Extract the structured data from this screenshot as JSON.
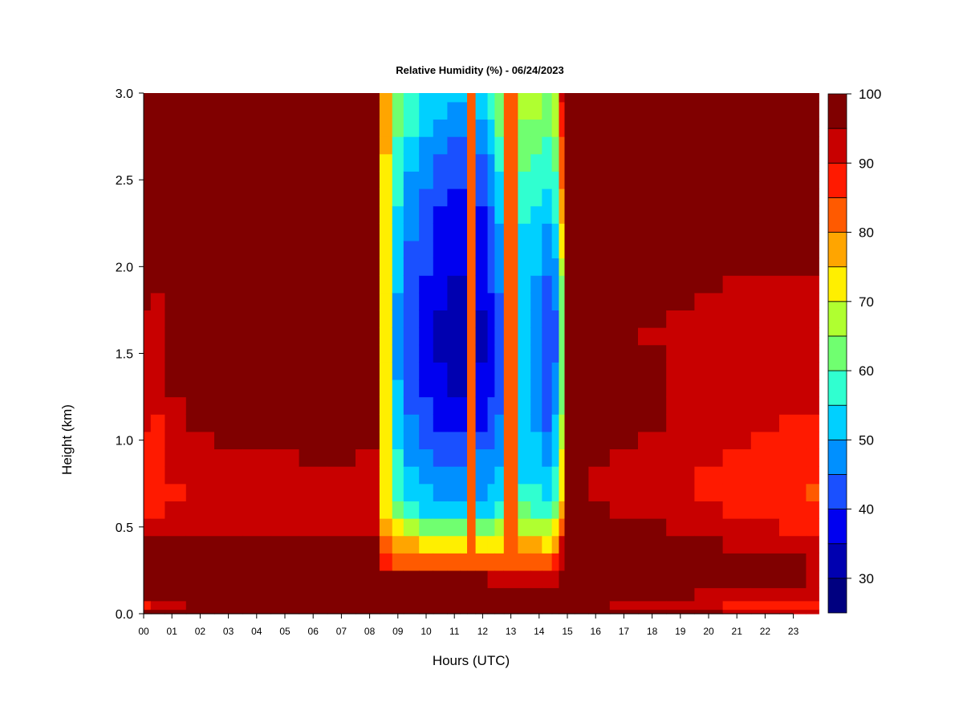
{
  "chart_data": {
    "type": "heatmap",
    "title": "Relative Humidity (%) - 06/24/2023",
    "xlabel": "Hours (UTC)",
    "ylabel": "Height (km)",
    "xlim": [
      0,
      23.9
    ],
    "ylim": [
      0,
      3
    ],
    "x_ticks": [
      "00",
      "01",
      "02",
      "03",
      "04",
      "05",
      "06",
      "07",
      "08",
      "09",
      "10",
      "11",
      "12",
      "13",
      "14",
      "15",
      "16",
      "17",
      "18",
      "19",
      "20",
      "21",
      "22",
      "23"
    ],
    "y_ticks": [
      "0.0",
      "0.5",
      "1.0",
      "1.5",
      "2.0",
      "2.5",
      "3.0"
    ],
    "colorbar": {
      "levels": [
        25,
        30,
        35,
        40,
        45,
        50,
        55,
        60,
        65,
        70,
        75,
        80,
        85,
        90,
        95,
        100
      ],
      "tick_labels": [
        "30",
        "40",
        "50",
        "60",
        "70",
        "80",
        "90",
        "100"
      ],
      "colors": [
        "#000080",
        "#0000b0",
        "#0000f0",
        "#1a50ff",
        "#0090ff",
        "#00d0ff",
        "#30ffd0",
        "#70ff70",
        "#b0ff30",
        "#ffef00",
        "#ffa500",
        "#ff5a00",
        "#ff1a00",
        "#c80000",
        "#800000"
      ]
    },
    "x_hours": [
      0,
      0.5,
      1,
      2,
      3,
      4,
      5,
      6,
      7,
      8,
      8.7,
      8.9,
      9.5,
      10,
      10.5,
      11,
      11.4,
      11.5,
      12,
      12.35,
      12.5,
      13,
      13.5,
      13.9,
      14.3,
      14.6,
      14.8,
      15,
      15.5,
      16,
      17,
      18,
      19,
      20,
      21,
      22,
      23,
      23.9
    ],
    "y_km": [
      0,
      0.05,
      0.1,
      0.2,
      0.3,
      0.4,
      0.5,
      0.6,
      0.7,
      0.8,
      0.9,
      1.0,
      1.1,
      1.2,
      1.3,
      1.4,
      1.5,
      1.6,
      1.7,
      1.8,
      1.9,
      2.0,
      2.1,
      2.2,
      2.3,
      2.4,
      2.5,
      2.6,
      2.7,
      2.8,
      2.9,
      3.0
    ],
    "rh_profiles": [
      [
        99,
        89,
        96,
        98,
        98,
        97,
        90,
        88,
        86,
        87,
        88,
        89,
        90,
        91,
        92,
        92,
        93,
        93,
        94,
        95,
        96,
        97,
        98,
        98,
        98,
        98,
        98,
        98,
        98,
        98,
        98,
        98
      ],
      [
        99,
        92,
        97,
        98,
        98,
        98,
        91,
        88,
        85,
        86,
        87,
        88,
        89,
        90,
        91,
        91,
        92,
        93,
        94,
        94,
        95,
        96,
        98,
        98,
        98,
        98,
        98,
        98,
        98,
        98,
        98,
        98
      ],
      [
        99,
        94,
        98,
        99,
        99,
        98,
        92,
        90,
        89,
        90,
        91,
        92,
        93,
        94,
        95,
        96,
        96,
        96,
        96,
        96,
        97,
        98,
        99,
        99,
        99,
        99,
        99,
        99,
        99,
        99,
        99,
        99
      ],
      [
        99,
        96,
        99,
        99,
        99,
        99,
        93,
        91,
        90,
        92,
        93,
        94,
        95,
        96,
        97,
        97,
        96,
        96,
        97,
        97,
        98,
        99,
        99,
        99,
        99,
        99,
        99,
        99,
        99,
        99,
        99,
        99
      ],
      [
        99,
        97,
        99,
        99,
        99,
        99,
        93,
        92,
        91,
        93,
        94,
        95,
        96,
        97,
        97,
        96,
        96,
        97,
        96,
        97,
        98,
        99,
        99,
        99,
        99,
        99,
        99,
        99,
        99,
        99,
        99,
        99
      ],
      [
        99,
        97,
        99,
        99,
        99,
        99,
        94,
        92,
        91,
        93,
        94,
        95,
        96,
        97,
        97,
        97,
        96,
        96,
        97,
        97,
        98,
        99,
        99,
        99,
        99,
        99,
        99,
        99,
        99,
        99,
        99,
        99
      ],
      [
        99,
        97,
        99,
        99,
        99,
        99,
        94,
        92,
        91,
        93,
        94,
        95,
        96,
        97,
        97,
        97,
        96,
        96,
        97,
        97,
        98,
        99,
        99,
        99,
        99,
        99,
        99,
        99,
        99,
        99,
        99,
        99
      ],
      [
        99,
        98,
        99,
        99,
        99,
        99,
        94,
        93,
        92,
        93,
        95,
        96,
        96,
        97,
        97,
        97,
        97,
        97,
        97,
        98,
        98,
        99,
        99,
        99,
        99,
        99,
        99,
        99,
        99,
        99,
        99,
        99
      ],
      [
        99,
        98,
        99,
        99,
        99,
        99,
        94,
        93,
        92,
        93,
        95,
        96,
        96,
        97,
        97,
        97,
        97,
        97,
        97,
        98,
        98,
        99,
        99,
        99,
        99,
        99,
        99,
        99,
        99,
        99,
        99,
        99
      ],
      [
        99,
        98,
        99,
        99,
        99,
        99,
        93,
        92,
        91,
        92,
        94,
        95,
        96,
        97,
        97,
        97,
        96,
        96,
        96,
        97,
        98,
        99,
        99,
        99,
        99,
        99,
        99,
        99,
        99,
        99,
        99,
        99
      ],
      [
        99,
        98,
        99,
        97,
        85,
        80,
        75,
        74,
        73,
        73,
        73,
        73,
        73,
        72,
        72,
        72,
        72,
        72,
        72,
        72,
        72,
        72,
        73,
        73,
        73,
        73,
        74,
        74,
        75,
        75,
        76,
        77
      ],
      [
        99,
        98,
        99,
        96,
        82,
        76,
        70,
        62,
        58,
        57,
        55,
        53,
        52,
        51,
        50,
        49,
        49,
        48,
        48,
        49,
        50,
        52,
        53,
        53,
        54,
        55,
        56,
        57,
        58,
        60,
        62,
        63
      ],
      [
        99,
        98,
        99,
        96,
        81,
        75,
        66,
        55,
        51,
        50,
        48,
        46,
        45,
        44,
        43,
        42,
        41,
        41,
        41,
        42,
        43,
        44,
        44,
        45,
        46,
        47,
        49,
        51,
        53,
        55,
        57,
        58
      ],
      [
        99,
        98,
        99,
        96,
        80,
        74,
        64,
        53,
        50,
        48,
        46,
        44,
        42,
        40,
        39,
        38,
        37,
        37,
        37,
        38,
        39,
        40,
        40,
        40,
        41,
        43,
        45,
        47,
        49,
        51,
        53,
        54
      ],
      [
        99,
        98,
        99,
        96,
        80,
        73,
        63,
        52,
        49,
        47,
        44,
        42,
        39,
        37,
        36,
        35,
        34,
        34,
        34,
        35,
        36,
        37,
        37,
        37,
        38,
        40,
        42,
        44,
        46,
        48,
        50,
        51
      ],
      [
        99,
        98,
        99,
        96,
        80,
        73,
        63,
        52,
        49,
        47,
        44,
        41,
        38,
        35,
        34,
        33,
        32,
        32,
        32,
        33,
        34,
        35,
        36,
        36,
        37,
        38,
        40,
        42,
        44,
        46,
        48,
        50
      ],
      [
        99,
        98,
        99,
        95,
        80,
        72,
        63,
        52,
        49,
        47,
        44,
        41,
        38,
        35,
        34,
        33,
        32,
        32,
        32,
        33,
        34,
        35,
        36,
        36,
        37,
        38,
        40,
        42,
        44,
        46,
        48,
        50
      ],
      [
        99,
        98,
        99,
        95,
        84,
        82,
        80,
        80,
        80,
        80,
        80,
        80,
        80,
        80,
        80,
        80,
        80,
        80,
        80,
        80,
        80,
        80,
        80,
        80,
        80,
        80,
        80,
        80,
        80,
        80,
        80,
        80
      ],
      [
        99,
        98,
        99,
        95,
        80,
        73,
        63,
        52,
        49,
        47,
        45,
        42,
        39,
        37,
        36,
        35,
        34,
        34,
        34,
        35,
        36,
        37,
        38,
        38,
        39,
        40,
        42,
        44,
        46,
        48,
        50,
        51
      ],
      [
        99,
        98,
        99,
        94,
        80,
        73,
        64,
        53,
        50,
        48,
        46,
        44,
        42,
        40,
        39,
        38,
        38,
        38,
        38,
        39,
        40,
        41,
        42,
        43,
        44,
        45,
        47,
        49,
        51,
        53,
        55,
        56
      ],
      [
        99,
        98,
        99,
        94,
        81,
        74,
        66,
        56,
        53,
        51,
        49,
        47,
        45,
        44,
        43,
        43,
        43,
        43,
        43,
        44,
        45,
        46,
        47,
        48,
        50,
        52,
        54,
        56,
        58,
        60,
        62,
        63
      ],
      [
        99,
        98,
        99,
        94,
        84,
        82,
        80,
        80,
        80,
        80,
        80,
        80,
        80,
        80,
        80,
        80,
        80,
        80,
        80,
        80,
        80,
        80,
        80,
        80,
        80,
        80,
        80,
        80,
        80,
        80,
        80,
        80
      ],
      [
        99,
        98,
        99,
        94,
        82,
        76,
        68,
        60,
        56,
        54,
        52,
        51,
        50,
        50,
        50,
        50,
        50,
        50,
        50,
        50,
        51,
        52,
        53,
        54,
        55,
        56,
        58,
        60,
        62,
        64,
        66,
        67
      ],
      [
        99,
        98,
        99,
        94,
        81,
        75,
        67,
        58,
        55,
        53,
        51,
        50,
        49,
        48,
        48,
        48,
        47,
        47,
        47,
        48,
        49,
        50,
        51,
        52,
        53,
        55,
        57,
        59,
        61,
        63,
        65,
        66
      ],
      [
        99,
        98,
        99,
        94,
        81,
        74,
        66,
        55,
        52,
        50,
        48,
        46,
        44,
        43,
        42,
        41,
        41,
        41,
        41,
        42,
        43,
        45,
        47,
        49,
        51,
        53,
        55,
        57,
        59,
        61,
        63,
        64
      ],
      [
        99,
        98,
        99,
        94,
        86,
        78,
        70,
        62,
        58,
        56,
        54,
        52,
        50,
        48,
        46,
        45,
        44,
        44,
        44,
        45,
        47,
        49,
        51,
        53,
        55,
        57,
        59,
        61,
        63,
        65,
        67,
        68
      ],
      [
        99,
        98,
        99,
        96,
        94,
        92,
        84,
        78,
        74,
        72,
        70,
        68,
        66,
        64,
        62,
        61,
        60,
        60,
        60,
        61,
        63,
        66,
        70,
        74,
        76,
        78,
        80,
        82,
        84,
        86,
        88,
        90
      ],
      [
        99,
        98,
        99,
        98,
        98,
        98,
        97,
        97,
        97,
        97,
        97,
        97,
        97,
        97,
        97,
        97,
        97,
        97,
        97,
        96,
        97,
        98,
        99,
        99,
        99,
        99,
        99,
        99,
        99,
        99,
        99,
        99
      ],
      [
        99,
        98,
        99,
        99,
        99,
        99,
        97,
        96,
        95,
        95,
        95,
        96,
        96,
        97,
        97,
        97,
        96,
        96,
        97,
        97,
        98,
        99,
        99,
        99,
        99,
        99,
        99,
        99,
        99,
        99,
        99,
        99
      ],
      [
        99,
        98,
        99,
        99,
        99,
        98,
        97,
        95,
        94,
        94,
        95,
        95,
        96,
        96,
        97,
        96,
        96,
        96,
        96,
        97,
        98,
        99,
        99,
        99,
        99,
        99,
        99,
        99,
        99,
        99,
        99,
        99
      ],
      [
        97,
        94,
        97,
        99,
        98,
        98,
        96,
        94,
        93,
        93,
        94,
        95,
        96,
        97,
        96,
        96,
        95,
        95,
        96,
        97,
        98,
        99,
        99,
        99,
        99,
        99,
        99,
        99,
        99,
        99,
        99,
        99
      ],
      [
        96,
        92,
        96,
        98,
        98,
        97,
        95,
        93,
        92,
        92,
        93,
        94,
        95,
        96,
        96,
        95,
        95,
        94,
        95,
        96,
        97,
        98,
        99,
        99,
        99,
        99,
        99,
        99,
        99,
        99,
        99,
        99
      ],
      [
        96,
        91,
        95,
        97,
        97,
        96,
        93,
        91,
        90,
        90,
        91,
        92,
        93,
        94,
        94,
        93,
        93,
        93,
        94,
        95,
        96,
        97,
        98,
        99,
        99,
        99,
        99,
        99,
        99,
        99,
        99,
        99
      ],
      [
        95,
        90,
        94,
        96,
        96,
        95,
        92,
        90,
        89,
        89,
        90,
        91,
        92,
        93,
        93,
        92,
        92,
        92,
        93,
        94,
        95,
        96,
        98,
        98,
        99,
        99,
        99,
        99,
        99,
        99,
        99,
        99
      ],
      [
        94,
        89,
        93,
        96,
        95,
        94,
        91,
        88,
        87,
        88,
        89,
        90,
        91,
        92,
        92,
        92,
        91,
        91,
        92,
        93,
        94,
        96,
        97,
        98,
        98,
        99,
        99,
        99,
        99,
        99,
        99,
        99
      ],
      [
        93,
        88,
        92,
        95,
        95,
        94,
        90,
        87,
        86,
        87,
        88,
        89,
        90,
        91,
        91,
        91,
        91,
        91,
        92,
        92,
        93,
        95,
        97,
        98,
        98,
        99,
        99,
        99,
        99,
        99,
        99,
        99
      ],
      [
        92,
        87,
        92,
        95,
        95,
        94,
        89,
        86,
        85,
        86,
        87,
        88,
        89,
        90,
        91,
        91,
        91,
        91,
        91,
        92,
        93,
        95,
        97,
        98,
        98,
        99,
        99,
        99,
        99,
        99,
        99,
        99
      ],
      [
        91,
        86,
        91,
        94,
        94,
        93,
        88,
        85,
        84,
        85,
        86,
        88,
        89,
        90,
        91,
        91,
        91,
        91,
        91,
        92,
        93,
        95,
        97,
        98,
        98,
        99,
        99,
        99,
        99,
        99,
        99,
        99
      ]
    ]
  }
}
